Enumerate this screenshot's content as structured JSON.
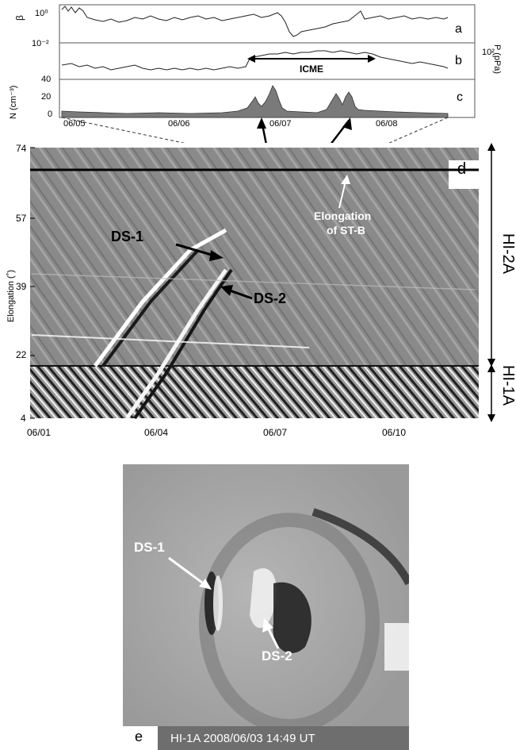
{
  "insitu": {
    "panels": [
      {
        "letter": "a",
        "ylabel": "β",
        "ticks": [
          "10⁰",
          "10⁻²"
        ]
      },
      {
        "letter": "b",
        "ylabel": "",
        "ticks": [
          "10⁻²"
        ],
        "right_label": "P (pPa)",
        "right_tick": "10²"
      },
      {
        "letter": "c",
        "ylabel": "N (cm⁻³)",
        "ticks": [
          "40",
          "20",
          "0"
        ]
      }
    ],
    "icme_label": "ICME",
    "x_ticks": [
      "06/05",
      "06/06",
      "06/07",
      "06/08"
    ]
  },
  "jmap": {
    "panel_letter": "d",
    "ylabel": "Elongation (˚)",
    "y_ticks": [
      "74",
      "57",
      "39",
      "22",
      "4"
    ],
    "x_ticks": [
      "06/01",
      "06/04",
      "06/07",
      "06/10"
    ],
    "annotations": {
      "ds1": "DS-1",
      "ds2": "DS-2",
      "elong_line1": "Elongation",
      "elong_line2": "of  ST-B"
    },
    "instruments": [
      "HI-2A",
      "HI-1A"
    ]
  },
  "image_panel": {
    "letter": "e",
    "caption": "HI-1A 2008/06/03 14:49 UT",
    "ds1": "DS-1",
    "ds2": "DS-2"
  },
  "colors": {
    "jmap_background": "#8a8a8a",
    "image_background": "#9a9a9a",
    "caption_bar": "#6e6e6e",
    "density_fill": "#7a7a7a"
  }
}
